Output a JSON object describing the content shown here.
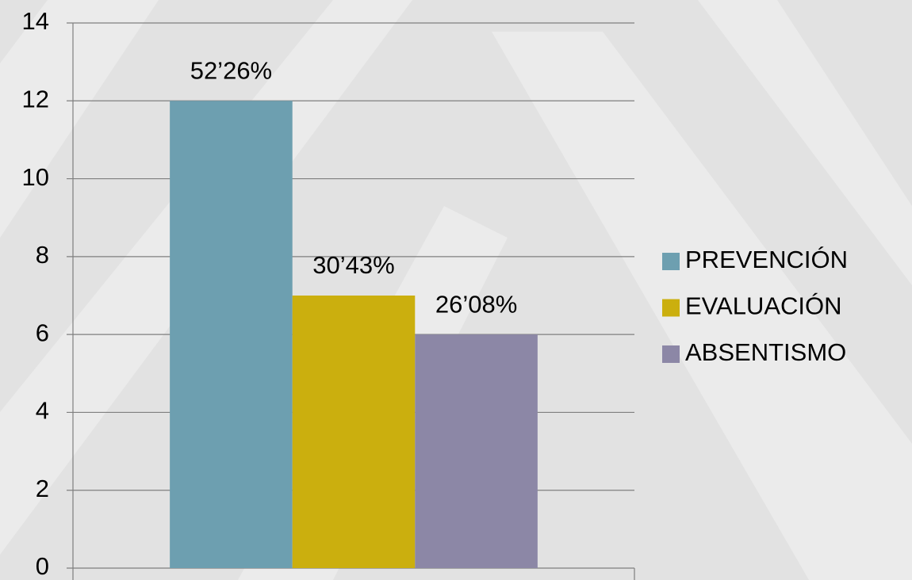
{
  "chart_data": {
    "type": "bar",
    "categories": [
      null
    ],
    "series": [
      {
        "name": "PREVENCIÓN",
        "color": "#6d9fb0",
        "values": [
          12
        ],
        "label": "52’26%"
      },
      {
        "name": "EVALUACIÓN",
        "color": "#cbaf0e",
        "values": [
          7
        ],
        "label": "30’43%"
      },
      {
        "name": "ABSENTISMO",
        "color": "#8c87a6",
        "values": [
          6
        ],
        "label": "26’08%"
      }
    ],
    "ylim": [
      0,
      14
    ],
    "yticks": [
      0,
      2,
      4,
      6,
      8,
      10,
      12,
      14
    ],
    "grid": true,
    "legend": "right"
  }
}
